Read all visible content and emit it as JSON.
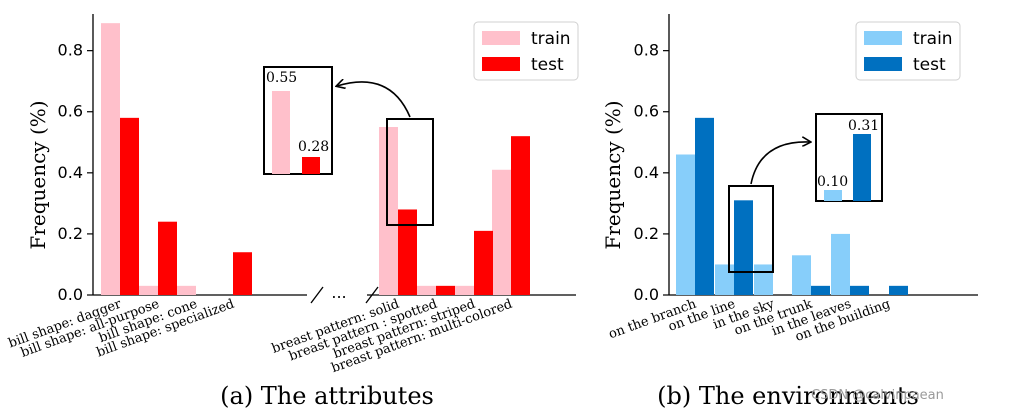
{
  "chart_data": [
    {
      "type": "bar",
      "caption": "(a) The attributes",
      "ylabel": "Frequency (%)",
      "ylim": [
        0,
        0.92
      ],
      "yticks": [
        0.0,
        0.2,
        0.4,
        0.6,
        0.8
      ],
      "categories": [
        "bill shape: dagger",
        "bill shape: all-purpose",
        "bill shape: cone",
        "bill shape: specialized",
        "breast pattern: solid",
        "breast pattern : spotted",
        "breast pattern: striped",
        "breast pattern: multi-colored"
      ],
      "break_label": "...",
      "series": [
        {
          "name": "train",
          "color": "#ffc0cb",
          "values": [
            0.89,
            0.03,
            0.03,
            0.0,
            0.55,
            0.03,
            0.03,
            0.41
          ]
        },
        {
          "name": "test",
          "color": "#ff0000",
          "values": [
            0.58,
            0.24,
            0.0,
            0.14,
            0.28,
            0.03,
            0.21,
            0.52
          ]
        }
      ],
      "zoom": {
        "category_index": 4,
        "train_label": "0.55",
        "test_label": "0.28"
      },
      "legend_position": "top-right"
    },
    {
      "type": "bar",
      "caption": "(b) The environments",
      "ylabel": "Frequency (%)",
      "ylim": [
        0,
        0.92
      ],
      "yticks": [
        0.0,
        0.2,
        0.4,
        0.6,
        0.8
      ],
      "categories": [
        "on the branch",
        "on the line",
        "in the sky",
        "on the trunk",
        "in the leaves",
        "on the building"
      ],
      "series": [
        {
          "name": "train",
          "color": "#87cefa",
          "values": [
            0.46,
            0.1,
            0.1,
            0.13,
            0.2,
            0.0
          ]
        },
        {
          "name": "test",
          "color": "#0070c0",
          "values": [
            0.58,
            0.31,
            0.0,
            0.03,
            0.03,
            0.03
          ]
        }
      ],
      "zoom": {
        "category_index": 1,
        "train_label": "0.10",
        "test_label": "0.31"
      },
      "legend_position": "top-right"
    }
  ],
  "watermark": "CSDN @calvinpaean"
}
